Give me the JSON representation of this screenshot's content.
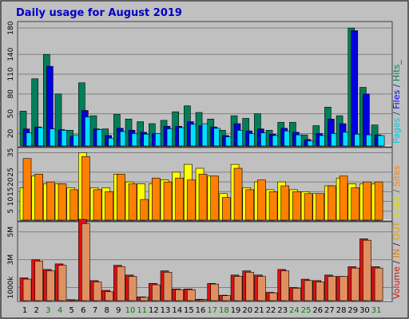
{
  "chart_data": {
    "type": "bar",
    "title": "Daily usage for August 2019",
    "categories": [
      "1",
      "2",
      "3",
      "4",
      "5",
      "6",
      "7",
      "8",
      "9",
      "10",
      "11",
      "12",
      "13",
      "14",
      "15",
      "16",
      "17",
      "18",
      "19",
      "20",
      "21",
      "22",
      "23",
      "24",
      "25",
      "26",
      "27",
      "28",
      "29",
      "30",
      "31"
    ],
    "weekend_days": [
      "3",
      "4",
      "10",
      "11",
      "17",
      "18",
      "24",
      "25",
      "31"
    ],
    "panels": [
      {
        "id": "hits",
        "axis_label_parts": [
          {
            "text": "Pages",
            "color": "#00C8E6"
          },
          {
            "text": " / ",
            "color": "#005050"
          },
          {
            "text": "Files",
            "color": "#0000FF"
          },
          {
            "text": " / ",
            "color": "#005050"
          },
          {
            "text": "Hits",
            "color": "#008060"
          },
          {
            "text": "_",
            "color": "#005050"
          }
        ],
        "yticks": [
          20,
          50,
          80,
          110,
          140,
          180
        ],
        "ylim": [
          0,
          185
        ],
        "series": [
          {
            "name": "Hits",
            "color": "#00805A",
            "values": [
              54,
              103,
              140,
              80,
              25,
              97,
              47,
              27,
              49,
              42,
              38,
              35,
              40,
              53,
              62,
              52,
              42,
              25,
              47,
              43,
              50,
              25,
              37,
              37,
              18,
              32,
              60,
              47,
              180,
              90,
              33
            ]
          },
          {
            "name": "Files",
            "color": "#0000E0",
            "values": [
              27,
              30,
              122,
              26,
              16,
              55,
              27,
              17,
              28,
              25,
              22,
              20,
              31,
              31,
              38,
              32,
              30,
              17,
              35,
              24,
              27,
              19,
              28,
              22,
              11,
              20,
              42,
              35,
              176,
              80,
              18
            ]
          },
          {
            "name": "Pages",
            "color": "#00E0FF",
            "values": [
              21,
              29,
              27,
              25,
              18,
              45,
              26,
              13,
              23,
              20,
              19,
              20,
              27,
              29,
              34,
              35,
              28,
              15,
              25,
              20,
              21,
              17,
              24,
              18,
              9,
              17,
              20,
              22,
              19,
              18,
              17
            ]
          }
        ]
      },
      {
        "id": "visits",
        "axis_label_parts": [
          {
            "text": "Visits",
            "color": "#E0E000"
          },
          {
            "text": " / ",
            "color": "#806000"
          },
          {
            "text": "Sites",
            "color": "#FF8000"
          }
        ],
        "yticks": [
          5,
          10,
          15,
          20,
          25,
          35
        ],
        "ylim": [
          0,
          36
        ],
        "series": [
          {
            "name": "Visits",
            "color": "#FFFF00",
            "values": [
              17,
              23,
              19,
              19,
              17,
              35,
              17,
              17,
              24,
              20,
              19,
              19,
              21,
              25,
              29,
              27,
              23,
              14,
              29,
              17,
              20,
              16,
              20,
              16,
              15,
              14,
              18,
              22,
              19,
              19,
              19
            ]
          },
          {
            "name": "Sites",
            "color": "#FF8000",
            "values": [
              32,
              24,
              20,
              19,
              16,
              33,
              16,
              15,
              24,
              19,
              11,
              22,
              20,
              22,
              21,
              24,
              23,
              12,
              27,
              16,
              21,
              15,
              18,
              15,
              14,
              14,
              18,
              23,
              17,
              20,
              20
            ]
          }
        ]
      },
      {
        "id": "volume",
        "axis_label_parts": [
          {
            "text": "Volume",
            "color": "#D01010"
          },
          {
            "text": " / ",
            "color": "#800000"
          },
          {
            "text": "IN",
            "color": "#E08000"
          },
          {
            "text": " / ",
            "color": "#800000"
          },
          {
            "text": "OUT",
            "color": "#E0A000"
          }
        ],
        "yticks": [
          {
            "label": "1000k",
            "value": 1000
          },
          {
            "label": "3M",
            "value": 3000
          },
          {
            "label": "5M",
            "value": 5000
          }
        ],
        "ylim": [
          0,
          5500
        ],
        "series": [
          {
            "name": "Volume",
            "color": "#E01010",
            "values": [
              1700,
              3000,
              2300,
              2700,
              130,
              5900,
              1500,
              800,
              2600,
              1900,
              330,
              1300,
              2200,
              900,
              900,
              160,
              1300,
              450,
              1900,
              2200,
              1900,
              660,
              2300,
              1000,
              1600,
              1500,
              1900,
              1800,
              2500,
              4500,
              2500
            ]
          },
          {
            "name": "OUT",
            "color": "#E09060",
            "values": [
              1600,
              2900,
              2200,
              2600,
              110,
              5600,
              1400,
              700,
              2500,
              1800,
              300,
              1200,
              2100,
              850,
              850,
              140,
              1250,
              420,
              1800,
              2100,
              1800,
              620,
              2200,
              950,
              1500,
              1400,
              1800,
              1800,
              2400,
              4400,
              2400
            ]
          }
        ]
      }
    ]
  }
}
